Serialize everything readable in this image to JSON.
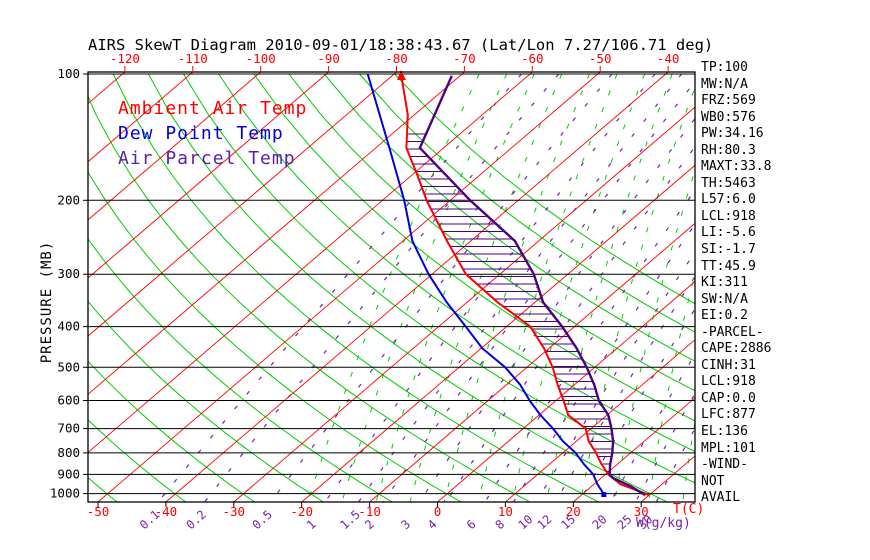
{
  "title": "AIRS SkewT Diagram 2010-09-01/18:38:43.67 (Lat/Lon 7.27/106.71 deg)",
  "legend": [
    {
      "label": "Ambient Air Temp",
      "color": "#ff0000"
    },
    {
      "label": "Dew Point Temp",
      "color": "#0000dd"
    },
    {
      "label": "Air Parcel Temp",
      "color": "#5a1fa8"
    }
  ],
  "stats_panel": [
    "TP:100",
    "MW:N/A",
    "FRZ:569",
    "WB0:576",
    "PW:34.16",
    "RH:80.3",
    "MAXT:33.8",
    "TH:5463",
    "L57:6.0",
    "LCL:918",
    "LI:-5.6",
    "SI:-1.7",
    "TT:45.9",
    "KI:311",
    "SW:N/A",
    "EI:0.2",
    "-PARCEL-",
    "CAPE:2886",
    "CINH:31",
    "LCL:918",
    "CAP:0.0",
    "LFC:877",
    "EL:136",
    "MPL:101",
    "-WIND-",
    "NOT",
    "AVAIL"
  ],
  "axes": {
    "pressure_label": "PRESSURE (MB)",
    "pressure_ticks": [
      100,
      200,
      300,
      400,
      500,
      600,
      700,
      800,
      900,
      1000
    ],
    "temp_axis_label": "T(C)",
    "mixing_axis_label": "W(g/kg)",
    "top_temp_ticks": [
      -120,
      -110,
      -100,
      -90,
      -80,
      -70,
      -60,
      -50,
      -40
    ],
    "bottom_temp_ticks": [
      -50,
      -40,
      -30,
      -20,
      -10,
      0,
      10,
      20,
      30
    ],
    "mixing_ratio_labels": [
      0.1,
      0.2,
      0.5,
      1,
      1.5,
      2,
      3,
      4,
      6,
      8,
      10,
      12,
      15,
      20,
      25,
      30
    ]
  },
  "colors": {
    "frame": "#000000",
    "isotherm": "#ff0000",
    "dry_adiabat": "#00cc00",
    "moist_adiabat": "#00cc00",
    "mixing_ratio": "#7722aa",
    "ambient": "#ff0000",
    "dewpoint": "#0000dd",
    "parcel": "#4b0082",
    "hatch": "#4b0082"
  },
  "chart_data": {
    "type": "line",
    "subtype": "skewt-logp",
    "title": "AIRS SkewT Diagram 2010-09-01/18:38:43.67 (Lat/Lon 7.27/106.71 deg)",
    "xlabel": "T(C)",
    "ylabel": "PRESSURE (MB)",
    "pressure_range": [
      100,
      1050
    ],
    "bottom_temp_range": [
      -50,
      35
    ],
    "top_temp_range": [
      -130,
      -35
    ],
    "grid": {
      "isotherms_every_C": 10,
      "dry_adiabats": "green solid curved",
      "moist_adiabats": "green dashed",
      "mixing_ratio_lines_g_per_kg": [
        0.1,
        0.2,
        0.5,
        1,
        1.5,
        2,
        3,
        4,
        6,
        8,
        10,
        12,
        15,
        20,
        25,
        30
      ]
    },
    "series": [
      {
        "name": "Ambient Air Temp",
        "color": "#ff0000",
        "width": 2,
        "points": [
          [
            100,
            -79
          ],
          [
            125,
            -71
          ],
          [
            150,
            -65.5
          ],
          [
            175,
            -59
          ],
          [
            200,
            -53.5
          ],
          [
            250,
            -43.5
          ],
          [
            300,
            -35
          ],
          [
            350,
            -25.5
          ],
          [
            400,
            -16.5
          ],
          [
            450,
            -10.8
          ],
          [
            500,
            -6.2
          ],
          [
            550,
            -2.5
          ],
          [
            600,
            1.1
          ],
          [
            650,
            4.3
          ],
          [
            700,
            9.2
          ],
          [
            750,
            11.8
          ],
          [
            800,
            14.9
          ],
          [
            850,
            17.6
          ],
          [
            900,
            20.4
          ],
          [
            950,
            23.9
          ],
          [
            1000,
            29.2
          ],
          [
            1008,
            29.9
          ]
        ]
      },
      {
        "name": "Dew Point Temp",
        "color": "#0000dd",
        "width": 2,
        "points": [
          [
            100,
            -83.9
          ],
          [
            150,
            -68
          ],
          [
            200,
            -56.8
          ],
          [
            250,
            -48.6
          ],
          [
            300,
            -40.5
          ],
          [
            350,
            -33
          ],
          [
            400,
            -26
          ],
          [
            450,
            -19.9
          ],
          [
            500,
            -13.2
          ],
          [
            550,
            -8
          ],
          [
            600,
            -3.9
          ],
          [
            650,
            0.2
          ],
          [
            700,
            4.4
          ],
          [
            750,
            8
          ],
          [
            800,
            11.9
          ],
          [
            850,
            15
          ],
          [
            900,
            18.2
          ],
          [
            950,
            20.5
          ],
          [
            1000,
            23
          ],
          [
            1005,
            23.2
          ]
        ]
      },
      {
        "name": "Air Parcel Temp",
        "color": "#4b0082",
        "width": 2.4,
        "points": [
          [
            101,
            -71.2
          ],
          [
            150,
            -63.5
          ],
          [
            200,
            -47.1
          ],
          [
            250,
            -33.5
          ],
          [
            300,
            -25
          ],
          [
            350,
            -18.8
          ],
          [
            400,
            -11.8
          ],
          [
            450,
            -6
          ],
          [
            500,
            -1.2
          ],
          [
            550,
            2.9
          ],
          [
            600,
            6.3
          ],
          [
            650,
            10.2
          ],
          [
            700,
            13
          ],
          [
            750,
            15.4
          ],
          [
            800,
            17.3
          ],
          [
            850,
            18.9
          ],
          [
            900,
            20.6
          ],
          [
            918,
            21.7
          ],
          [
            960,
            25.7
          ],
          [
            1008,
            29.4
          ]
        ]
      }
    ],
    "annotations": {
      "equilibrium_level_mb": 136,
      "lcl_mb": 918,
      "cape_hatched_between": [
        "Ambient Air Temp",
        "Air Parcel Temp"
      ]
    }
  }
}
